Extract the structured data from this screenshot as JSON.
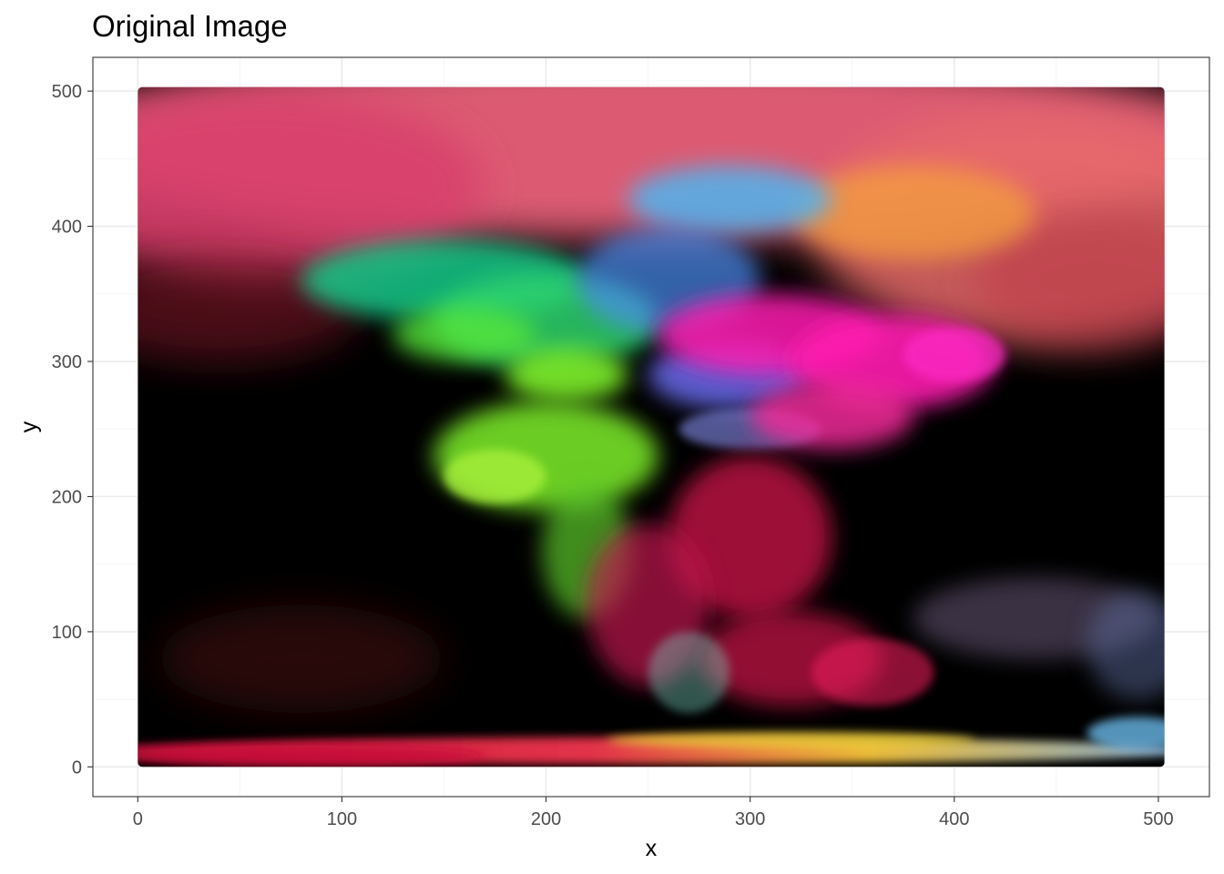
{
  "chart_data": {
    "type": "heatmap",
    "title": "Original Image",
    "xlabel": "x",
    "ylabel": "y",
    "xlim": [
      -22,
      525
    ],
    "ylim": [
      -22,
      525
    ],
    "x_ticks": [
      0,
      100,
      200,
      300,
      400,
      500
    ],
    "y_ticks": [
      0,
      100,
      200,
      300,
      400,
      500
    ],
    "grid": true,
    "image_extent": {
      "x": [
        0,
        503
      ],
      "y": [
        0,
        503
      ]
    },
    "image_description_colors": {
      "background": "#000000",
      "top_haze": "#e8607a",
      "green": "#7ef02a",
      "teal": "#12c98a",
      "blue": "#4fb4ee",
      "magenta": "#ff1bb0",
      "crimson": "#e0194f",
      "orange": "#f5a23a",
      "yellow": "#f3d43a"
    }
  },
  "colors": {
    "panel_border": "#333333",
    "grid_major": "#ebebeb",
    "grid_minor": "#f5f5f5",
    "tick_text": "#4d4d4d"
  }
}
